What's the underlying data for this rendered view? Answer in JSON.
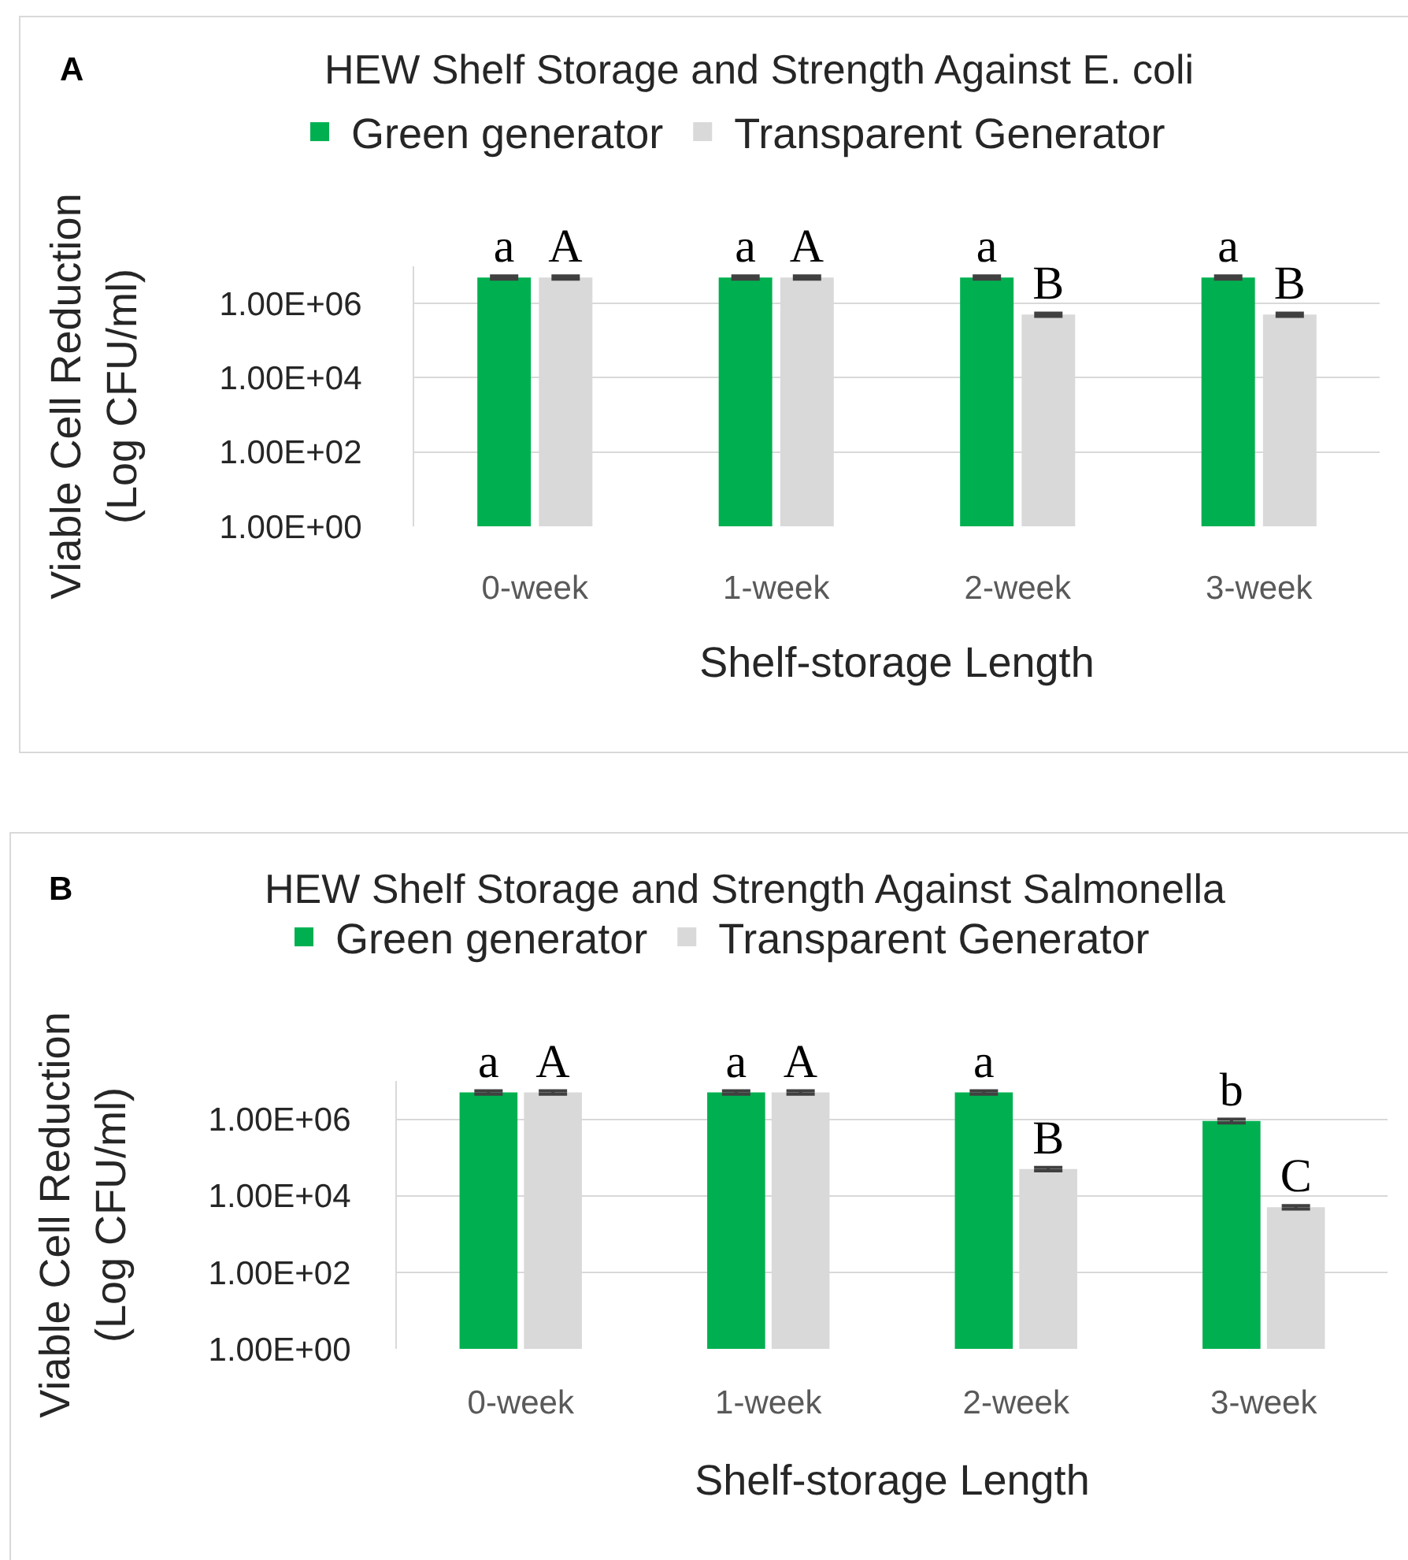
{
  "chart_data": [
    {
      "type": "bar",
      "title": "HEW Shelf Storage and Strength Against E. coli",
      "xlabel": "Shelf-storage Length",
      "ylabel": "Viable Cell Reduction\n(Log CFU/ml)",
      "annotations": [
        "A"
      ],
      "categories": [
        "0-week",
        "1-week",
        "2-week",
        "3-week"
      ],
      "series": [
        {
          "name": "Green generator",
          "color": "#00b050",
          "values": [
            5000000,
            5000000,
            5000000,
            5000000
          ],
          "errors": [
            500000,
            500000,
            500000,
            500000
          ],
          "value_labels": [
            "a",
            "a",
            "a",
            "a"
          ]
        },
        {
          "name": "Transparent Generator",
          "color": "#d9d9d9",
          "values": [
            5000000,
            5000000,
            500000,
            500000
          ],
          "errors": [
            500000,
            500000,
            50000,
            50000
          ],
          "value_labels": [
            "A",
            "A",
            "B",
            "B"
          ]
        }
      ],
      "log": true,
      "ylim": [
        1,
        10000000
      ],
      "yticks": [
        {
          "value": 1,
          "label": "1.00E+00"
        },
        {
          "value": 100,
          "label": "1.00E+02"
        },
        {
          "value": 10000,
          "label": "1.00E+04"
        },
        {
          "value": 1000000,
          "label": "1.00E+06"
        }
      ],
      "grid": "y",
      "legend": "top"
    },
    {
      "type": "bar",
      "title": "HEW Shelf Storage and Strength Against Salmonella",
      "xlabel": "Shelf-storage Length",
      "ylabel": "Viable Cell Reduction\n(Log CFU/ml)",
      "annotations": [
        "B"
      ],
      "categories": [
        "0-week",
        "1-week",
        "2-week",
        "3-week"
      ],
      "series": [
        {
          "name": "Green generator",
          "color": "#00b050",
          "values": [
            5000000,
            5000000,
            5000000,
            900000
          ],
          "errors": [
            500000,
            500000,
            500000,
            100000
          ],
          "value_labels": [
            "a",
            "a",
            "a",
            "b"
          ]
        },
        {
          "name": "Transparent Generator",
          "color": "#d9d9d9",
          "values": [
            5000000,
            5000000,
            50000,
            5000
          ],
          "errors": [
            500000,
            500000,
            5000,
            500
          ],
          "value_labels": [
            "A",
            "A",
            "B",
            "C"
          ]
        }
      ],
      "log": true,
      "ylim": [
        1,
        10000000
      ],
      "yticks": [
        {
          "value": 1,
          "label": "1.00E+00"
        },
        {
          "value": 100,
          "label": "1.00E+02"
        },
        {
          "value": 10000,
          "label": "1.00E+04"
        },
        {
          "value": 1000000,
          "label": "1.00E+06"
        }
      ],
      "grid": "y",
      "legend": "top"
    }
  ]
}
